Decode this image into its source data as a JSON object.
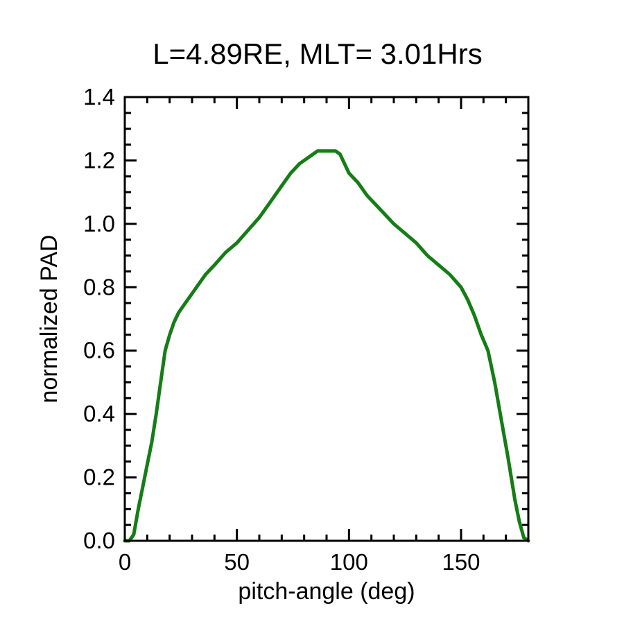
{
  "page": {
    "background": "#ffffff",
    "text_color": "#000000"
  },
  "chart_data": {
    "type": "line",
    "title": "L=4.89RE, MLT= 3.01Hrs",
    "xlabel": "pitch-angle (deg)",
    "ylabel": "normalized PAD",
    "xlim": [
      0,
      180
    ],
    "ylim": [
      0.0,
      1.4
    ],
    "grid": false,
    "legend": null,
    "frame_color": "#000000",
    "xticks": {
      "major": [
        0,
        50,
        100,
        150
      ],
      "labels": [
        "0",
        "50",
        "100",
        "150"
      ],
      "minor_interval": 10
    },
    "yticks": {
      "major": [
        0.0,
        0.2,
        0.4,
        0.6,
        0.8,
        1.0,
        1.2,
        1.4
      ],
      "labels": [
        "0.0",
        "0.2",
        "0.4",
        "0.6",
        "0.8",
        "1.0",
        "1.2",
        "1.4"
      ],
      "minor_interval": 0.05
    },
    "series": [
      {
        "name": "normalized PAD",
        "color": "#157d15",
        "x": [
          0,
          2,
          4,
          6,
          8,
          10,
          12,
          14,
          16,
          18,
          20,
          22,
          24,
          27,
          30,
          33,
          36,
          40,
          45,
          50,
          55,
          60,
          65,
          70,
          74,
          78,
          82,
          86,
          90,
          94,
          96,
          100,
          104,
          108,
          112,
          116,
          120,
          125,
          130,
          135,
          140,
          145,
          150,
          153,
          156,
          159,
          162,
          165,
          168,
          171,
          174,
          176,
          178,
          180
        ],
        "y": [
          0.0,
          0.0,
          0.02,
          0.1,
          0.17,
          0.24,
          0.31,
          0.4,
          0.5,
          0.6,
          0.65,
          0.69,
          0.72,
          0.75,
          0.78,
          0.81,
          0.84,
          0.87,
          0.91,
          0.94,
          0.98,
          1.02,
          1.07,
          1.12,
          1.16,
          1.19,
          1.21,
          1.23,
          1.23,
          1.23,
          1.22,
          1.16,
          1.13,
          1.09,
          1.06,
          1.03,
          1.0,
          0.97,
          0.94,
          0.9,
          0.87,
          0.84,
          0.8,
          0.76,
          0.71,
          0.65,
          0.6,
          0.5,
          0.38,
          0.26,
          0.13,
          0.06,
          0.01,
          0.0
        ]
      }
    ]
  }
}
